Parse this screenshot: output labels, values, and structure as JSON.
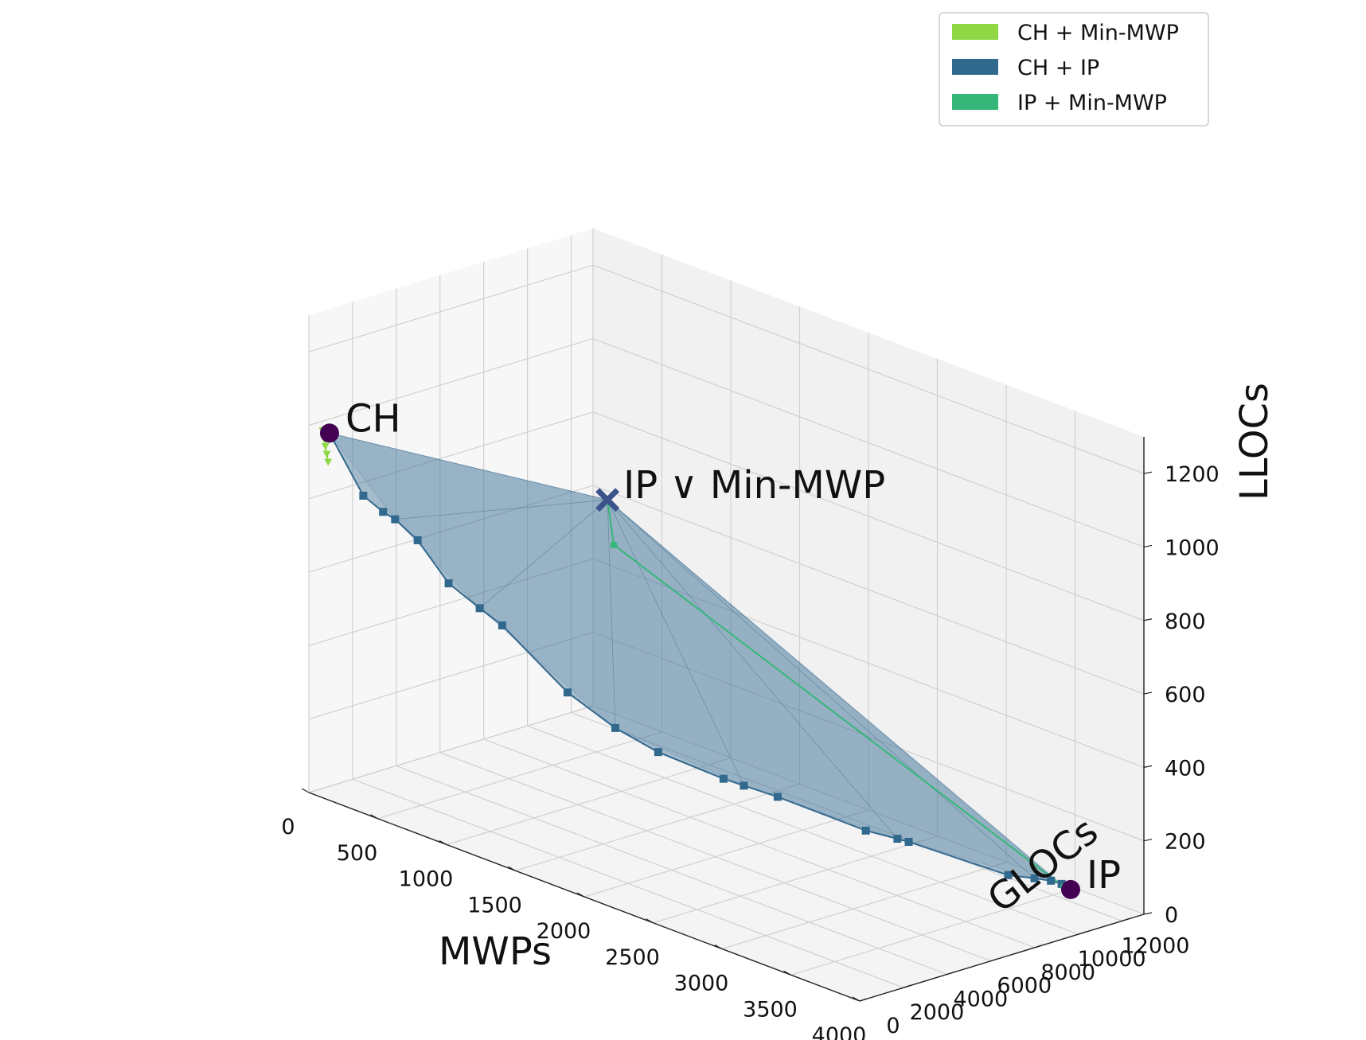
{
  "chart_data": {
    "type": "surface3d",
    "axes": {
      "x": {
        "label": "MWPs",
        "ticks": [
          0,
          500,
          1000,
          1500,
          2000,
          2500,
          3000,
          3500,
          4000
        ],
        "range": [
          0,
          4000
        ]
      },
      "y": {
        "label": "GLOCs",
        "ticks": [
          0,
          2000,
          4000,
          6000,
          8000,
          10000,
          12000
        ],
        "range": [
          0,
          13000
        ]
      },
      "z": {
        "label": "LLOCs",
        "ticks": [
          0,
          200,
          400,
          600,
          800,
          1000,
          1200
        ],
        "range": [
          0,
          1300
        ]
      }
    },
    "legend": {
      "position": "top-right",
      "entries": [
        {
          "label": "CH + Min-MWP",
          "color": "#8fd744"
        },
        {
          "label": "CH + IP",
          "color": "#31688e"
        },
        {
          "label": "IP + Min-MWP",
          "color": "#35b779"
        }
      ]
    },
    "points": [
      {
        "label": "CH",
        "mwp": 150,
        "gloc": 0,
        "lloc": 1000,
        "marker": "circle",
        "color": "#440154"
      },
      {
        "label": "IP",
        "mwp": 3500,
        "gloc": 12800,
        "lloc": 0,
        "marker": "circle",
        "color": "#440154"
      },
      {
        "label": "IP ∨ Min-MWP",
        "mwp": 200,
        "gloc": 12400,
        "lloc": 600,
        "marker": "x",
        "color": "#3b528b"
      }
    ],
    "series": [
      {
        "name": "CH + IP",
        "color": "#31688e",
        "points": [
          [
            150,
            0,
            1000
          ],
          [
            300,
            600,
            840
          ],
          [
            380,
            1000,
            800
          ],
          [
            420,
            1300,
            780
          ],
          [
            520,
            1700,
            730
          ],
          [
            650,
            2300,
            620
          ],
          [
            780,
            2900,
            560
          ],
          [
            880,
            3300,
            520
          ],
          [
            1180,
            4400,
            360
          ],
          [
            1400,
            5200,
            280
          ],
          [
            1600,
            5900,
            230
          ],
          [
            1900,
            7000,
            180
          ],
          [
            2000,
            7300,
            170
          ],
          [
            2150,
            7900,
            150
          ],
          [
            2600,
            9100,
            100
          ],
          [
            2750,
            9600,
            90
          ],
          [
            2800,
            9800,
            85
          ],
          [
            3300,
            11200,
            40
          ],
          [
            3380,
            11900,
            30
          ],
          [
            3420,
            12400,
            20
          ],
          [
            3450,
            12700,
            10
          ]
        ]
      },
      {
        "name": "IP + Min-MWP",
        "color": "#35b779",
        "points": [
          [
            200,
            12400,
            600
          ],
          [
            230,
            12500,
            480
          ],
          [
            3450,
            12800,
            0
          ]
        ]
      },
      {
        "name": "CH + Min-MWP",
        "color": "#8fd744",
        "points": [
          [
            100,
            0,
            1000
          ],
          [
            110,
            0,
            980
          ],
          [
            120,
            0,
            960
          ],
          [
            130,
            0,
            940
          ],
          [
            140,
            0,
            920
          ]
        ]
      }
    ]
  }
}
